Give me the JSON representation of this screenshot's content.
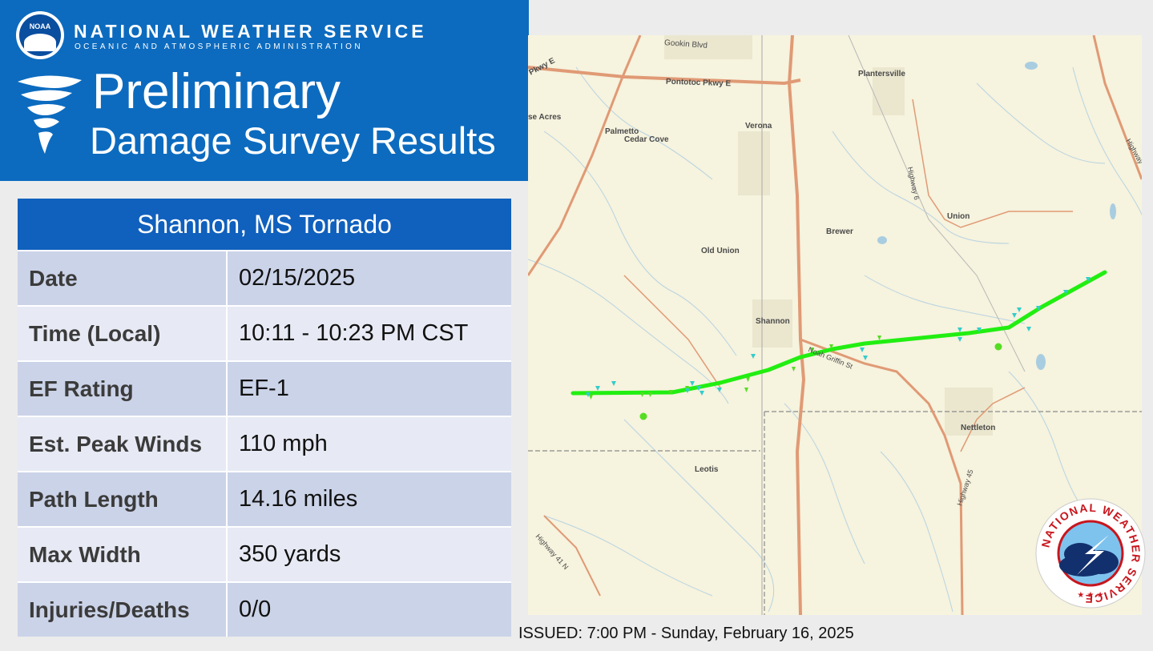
{
  "header": {
    "logo_text": "NOAA",
    "agency": "NATIONAL WEATHER SERVICE",
    "agency_sub": "OCEANIC AND ATMOSPHERIC ADMINISTRATION",
    "title_line1": "Preliminary",
    "title_line2": "Damage Survey Results",
    "background_color": "#0c6bbf"
  },
  "survey": {
    "title": "Shannon, MS Tornado",
    "rows": [
      {
        "label": "Date",
        "value": "02/15/2025"
      },
      {
        "label": "Time (Local)",
        "value": "10:11 - 10:23 PM CST"
      },
      {
        "label": "EF Rating",
        "value": "EF-1"
      },
      {
        "label": "Est. Peak Winds",
        "value": "110 mph"
      },
      {
        "label": "Path Length",
        "value": "14.16 miles"
      },
      {
        "label": "Max Width",
        "value": "350 yards"
      },
      {
        "label": "Injuries/Deaths",
        "value": "0/0"
      }
    ]
  },
  "map": {
    "place_labels": {
      "gookin": "Gookin Blvd",
      "pontotoc": "Pontotoc Pkwy E",
      "pkwy_e": "Pkwy E",
      "acres": "se Acres",
      "palmetto": "Palmetto",
      "cedar_cove": "Cedar Cove",
      "verona": "Verona",
      "plantersville": "Plantersville",
      "union": "Union",
      "brewer": "Brewer",
      "old_union": "Old Union",
      "shannon": "Shannon",
      "noah": "Noah Griffin St",
      "nettleton": "Nettleton",
      "leotis": "Leotis",
      "highway6": "Highway 6",
      "highway45": "Highway 45",
      "highway41": "Highway 41 N",
      "highway": "Highway"
    },
    "track_color": "#22ee11",
    "marker_color": "#33cccc"
  },
  "badge": {
    "text": "NATIONAL WEATHER SERVICE"
  },
  "footer": {
    "issued": "ISSUED: 7:00 PM - Sunday, February 16, 2025"
  }
}
